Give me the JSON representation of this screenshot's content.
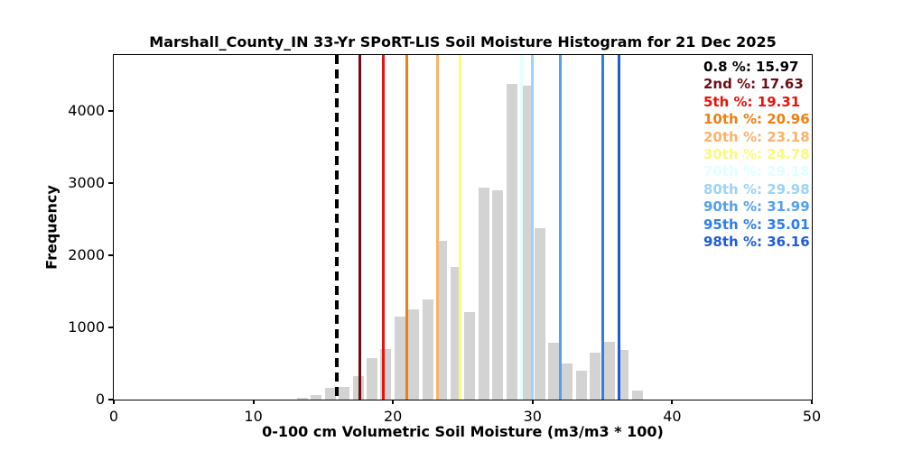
{
  "chart_data": {
    "type": "bar",
    "title": "Marshall_County_IN 33-Yr SPoRT-LIS Soil Moisture Histogram for 21 Dec 2025",
    "xlabel": "0-100 cm Volumetric Soil Moisture (m3/m3 * 100)",
    "ylabel": "Frequency",
    "xlim": [
      0,
      50
    ],
    "ylim": [
      0,
      4775
    ],
    "x_ticks": [
      0,
      10,
      20,
      30,
      40,
      50
    ],
    "y_ticks": [
      0,
      1000,
      2000,
      3000,
      4000
    ],
    "grid": false,
    "bar_color": "#d3d3d3",
    "bin_width": 1,
    "bar_relative_width": 0.78,
    "bins": [
      {
        "center": 13.5,
        "count": 25
      },
      {
        "center": 14.5,
        "count": 60
      },
      {
        "center": 15.5,
        "count": 160
      },
      {
        "center": 16.5,
        "count": 170
      },
      {
        "center": 17.5,
        "count": 330
      },
      {
        "center": 18.5,
        "count": 570
      },
      {
        "center": 19.5,
        "count": 700
      },
      {
        "center": 20.5,
        "count": 1150
      },
      {
        "center": 21.5,
        "count": 1250
      },
      {
        "center": 22.5,
        "count": 1390
      },
      {
        "center": 23.5,
        "count": 2200
      },
      {
        "center": 24.5,
        "count": 1840
      },
      {
        "center": 25.5,
        "count": 1210
      },
      {
        "center": 26.5,
        "count": 2940
      },
      {
        "center": 27.5,
        "count": 2900
      },
      {
        "center": 28.5,
        "count": 4380
      },
      {
        "center": 29.5,
        "count": 4350
      },
      {
        "center": 30.5,
        "count": 2370
      },
      {
        "center": 31.5,
        "count": 790
      },
      {
        "center": 32.5,
        "count": 500
      },
      {
        "center": 33.5,
        "count": 400
      },
      {
        "center": 34.5,
        "count": 650
      },
      {
        "center": 35.5,
        "count": 800
      },
      {
        "center": 36.5,
        "count": 690
      },
      {
        "center": 37.5,
        "count": 120
      }
    ],
    "percentile_lines": [
      {
        "label": "0.8 %",
        "value": 15.97,
        "color": "#000000",
        "style": "dashed"
      },
      {
        "label": "2nd %",
        "value": 17.63,
        "color": "#6e0d12",
        "style": "solid"
      },
      {
        "label": "5th %",
        "value": 19.31,
        "color": "#e8130c",
        "style": "solid"
      },
      {
        "label": "10th %",
        "value": 20.96,
        "color": "#f07e12",
        "style": "solid"
      },
      {
        "label": "20th %",
        "value": 23.18,
        "color": "#fbb368",
        "style": "solid"
      },
      {
        "label": "30th %",
        "value": 24.78,
        "color": "#fbfb77",
        "style": "solid"
      },
      {
        "label": "70th %",
        "value": 29.18,
        "color": "#e0ffff",
        "style": "solid"
      },
      {
        "label": "80th %",
        "value": 29.98,
        "color": "#9bd4f5",
        "style": "solid"
      },
      {
        "label": "90th %",
        "value": 31.99,
        "color": "#54a0ee",
        "style": "solid"
      },
      {
        "label": "95th %",
        "value": 35.01,
        "color": "#2e7ee5",
        "style": "solid"
      },
      {
        "label": "98th %",
        "value": 36.16,
        "color": "#1d5cd8",
        "style": "solid"
      }
    ],
    "legend_position": "upper-right"
  }
}
